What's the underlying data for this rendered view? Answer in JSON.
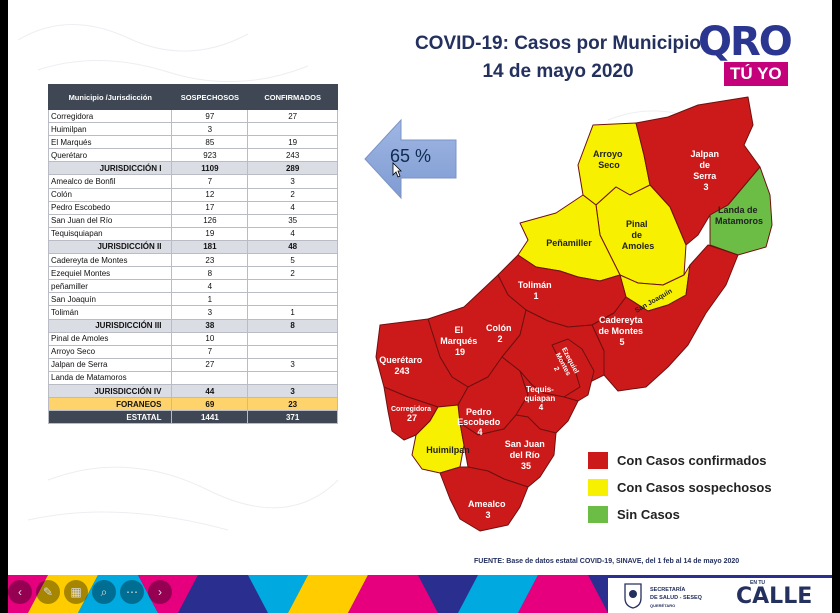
{
  "slide": {
    "title_line1": "COVID-19: Casos por Municipio",
    "title_line2": "14 de mayo 2020",
    "logo_main": "QRO",
    "logo_sub": "TÚ YO",
    "percent": "65 %",
    "source": "FUENTE: Base de datos estatal COVID-19, SINAVE, del 1 feb al 14 de mayo 2020"
  },
  "table": {
    "headers": [
      "Municipio /Jurisdicción",
      "SOSPECHOSOS",
      "CONFIRMADOS"
    ],
    "rows": [
      {
        "name": "Corregidora",
        "sosp": "97",
        "conf": "27",
        "type": "row"
      },
      {
        "name": "Huimilpan",
        "sosp": "3",
        "conf": "",
        "type": "row"
      },
      {
        "name": "El Marqués",
        "sosp": "85",
        "conf": "19",
        "type": "row"
      },
      {
        "name": "Querétaro",
        "sosp": "923",
        "conf": "243",
        "type": "row"
      },
      {
        "name": "JURISDICCIÓN I",
        "sosp": "1109",
        "conf": "289",
        "type": "jur"
      },
      {
        "name": "Amealco de Bonfil",
        "sosp": "7",
        "conf": "3",
        "type": "row"
      },
      {
        "name": "Colón",
        "sosp": "12",
        "conf": "2",
        "type": "row"
      },
      {
        "name": "Pedro Escobedo",
        "sosp": "17",
        "conf": "4",
        "type": "row"
      },
      {
        "name": "San Juan del Río",
        "sosp": "126",
        "conf": "35",
        "type": "row"
      },
      {
        "name": "Tequisquiapan",
        "sosp": "19",
        "conf": "4",
        "type": "row"
      },
      {
        "name": "JURISDICCIÓN II",
        "sosp": "181",
        "conf": "48",
        "type": "jur"
      },
      {
        "name": "Cadereyta de Montes",
        "sosp": "23",
        "conf": "5",
        "type": "row"
      },
      {
        "name": "Ezequiel Montes",
        "sosp": "8",
        "conf": "2",
        "type": "row"
      },
      {
        "name": "peñamiller",
        "sosp": "4",
        "conf": "",
        "type": "row"
      },
      {
        "name": "San Joaquín",
        "sosp": "1",
        "conf": "",
        "type": "row"
      },
      {
        "name": "Tolimán",
        "sosp": "3",
        "conf": "1",
        "type": "row"
      },
      {
        "name": "JURISDICCIÓN III",
        "sosp": "38",
        "conf": "8",
        "type": "jur"
      },
      {
        "name": "Pinal de Amoles",
        "sosp": "10",
        "conf": "",
        "type": "row"
      },
      {
        "name": "Arroyo Seco",
        "sosp": "7",
        "conf": "",
        "type": "row"
      },
      {
        "name": "Jalpan de Serra",
        "sosp": "27",
        "conf": "3",
        "type": "row"
      },
      {
        "name": "Landa de Matamoros",
        "sosp": "",
        "conf": "",
        "type": "row"
      },
      {
        "name": "JURISDICCIÓN IV",
        "sosp": "44",
        "conf": "3",
        "type": "jur"
      },
      {
        "name": "FORANEOS",
        "sosp": "69",
        "conf": "23",
        "type": "for"
      },
      {
        "name": "ESTATAL",
        "sosp": "1441",
        "conf": "371",
        "type": "tot"
      }
    ]
  },
  "map": {
    "labels": {
      "arroyo_seco": [
        "Arroyo",
        "Seco"
      ],
      "jalpan": [
        "Jalpan",
        "de",
        "Serra",
        "3"
      ],
      "landa": [
        "Landa de",
        "Matamoros"
      ],
      "pinal": [
        "Pinal",
        "de",
        "Amoles"
      ],
      "penamiller": "Peñamiller",
      "san_joaquin": "San Joaquín",
      "toliman": [
        "Tolimán",
        "1"
      ],
      "cadereyta": [
        "Cadereyta",
        "de Montes",
        "5"
      ],
      "el_marques": [
        "El",
        "Marqués",
        "19"
      ],
      "colon": [
        "Colón",
        "2"
      ],
      "ezequiel": [
        "Ezequiel",
        "Montes",
        "2"
      ],
      "queretaro": [
        "Querétaro",
        "243"
      ],
      "corregidora": [
        "Corregidora",
        "27"
      ],
      "pedro": [
        "Pedro",
        "Escobedo",
        "4"
      ],
      "tequis": [
        "Tequis-",
        "quiapan",
        "4"
      ],
      "huimilpan": "Huimilpan",
      "sanjuan": [
        "San Juan",
        "del Río",
        "35"
      ],
      "amealco": [
        "Amealco",
        "3"
      ]
    }
  },
  "legend": [
    {
      "label": "Con Casos confirmados",
      "color": "#cc1a1a"
    },
    {
      "label": "Con Casos sospechosos",
      "color": "#f7f000"
    },
    {
      "label": "Sin Casos",
      "color": "#6cbd45"
    }
  ],
  "footer": {
    "secretaria_line1": "SECRETARÍA",
    "secretaria_line2": "DE SALUD - SESEQ",
    "state": "QUERÉTARO",
    "calle_small": "EN TU",
    "calle": "CALLE"
  },
  "colors": {
    "confirmed": "#cc1a1a",
    "suspected": "#f7f000",
    "none": "#6cbd45",
    "title": "#24305e"
  }
}
